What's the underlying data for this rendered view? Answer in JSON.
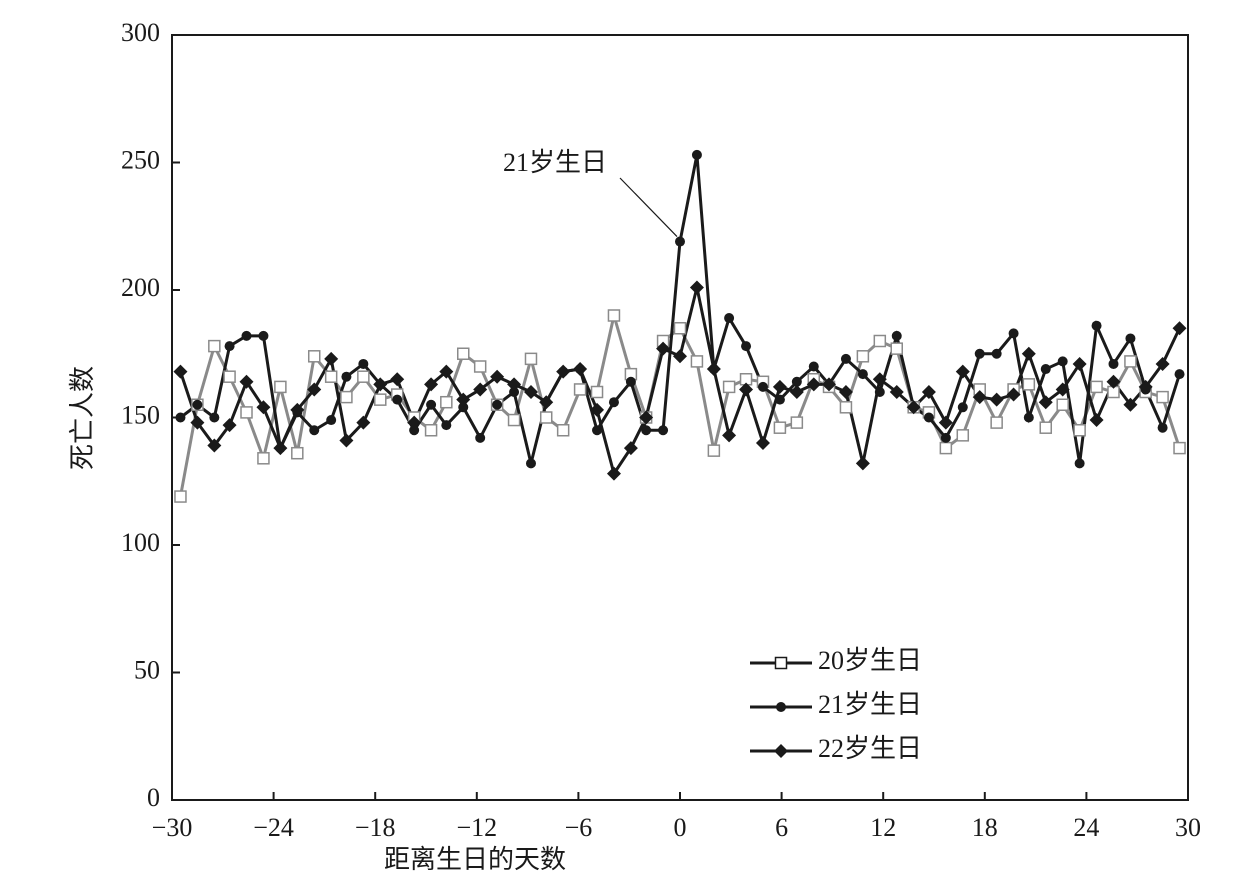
{
  "chart_data": {
    "type": "line",
    "xlabel": "距离生日的天数",
    "ylabel": "死亡人数",
    "annotation": "21岁生日",
    "xlim": [
      -30,
      30
    ],
    "ylim": [
      0,
      300
    ],
    "xticks": [
      {
        "value": -30,
        "label": "−30"
      },
      {
        "value": -24,
        "label": "−24"
      },
      {
        "value": -18,
        "label": "−18"
      },
      {
        "value": -12,
        "label": "−12"
      },
      {
        "value": -6,
        "label": "−6"
      },
      0,
      6,
      12,
      18,
      24,
      30
    ],
    "yticks": [
      0,
      50,
      100,
      150,
      200,
      250,
      300
    ],
    "legend": "lower right",
    "x": [
      -29.5,
      -28.5,
      -27.5,
      -26.6,
      -25.6,
      -24.6,
      -23.6,
      -22.6,
      -21.6,
      -20.6,
      -19.7,
      -18.7,
      -17.7,
      -16.7,
      -15.7,
      -14.7,
      -13.8,
      -12.8,
      -11.8,
      -10.8,
      -9.8,
      -8.8,
      -7.9,
      -6.9,
      -5.9,
      -4.9,
      -3.9,
      -2.9,
      -2.0,
      -1.0,
      0.0,
      1.0,
      2.0,
      2.9,
      3.9,
      4.9,
      5.9,
      6.9,
      7.9,
      8.8,
      9.8,
      10.8,
      11.8,
      12.8,
      13.8,
      14.7,
      15.7,
      16.7,
      17.7,
      18.7,
      19.7,
      20.6,
      21.6,
      22.6,
      23.6,
      24.6,
      25.6,
      26.6,
      27.5,
      28.5,
      29.5
    ],
    "series": [
      {
        "name": "20岁生日",
        "color": "#8a8a8a",
        "marker": "square",
        "values": [
          119,
          155,
          178,
          166,
          152,
          134,
          162,
          136,
          174,
          166,
          158,
          166,
          157,
          159,
          150,
          145,
          156,
          175,
          170,
          155,
          149,
          173,
          150,
          145,
          161,
          160,
          190,
          167,
          150,
          180,
          185,
          172,
          137,
          162,
          165,
          164,
          146,
          148,
          165,
          162,
          154,
          174,
          180,
          177,
          154,
          152,
          138,
          143,
          161,
          148,
          161,
          163,
          146,
          155,
          145,
          162,
          160,
          172,
          160,
          158,
          138
        ]
      },
      {
        "name": "21岁生日",
        "color": "#1a1a1a",
        "marker": "circle",
        "values": [
          150,
          155,
          150,
          178,
          182,
          182,
          138,
          152,
          145,
          149,
          166,
          171,
          163,
          157,
          145,
          155,
          147,
          154,
          142,
          155,
          160,
          132,
          156,
          168,
          169,
          145,
          156,
          164,
          145,
          145,
          219,
          253,
          169,
          189,
          178,
          162,
          157,
          164,
          170,
          163,
          173,
          167,
          160,
          182,
          154,
          150,
          142,
          154,
          175,
          175,
          183,
          150,
          169,
          172,
          132,
          186,
          171,
          181,
          161,
          146,
          167
        ]
      },
      {
        "name": "22岁生日",
        "color": "#1a1a1a",
        "marker": "diamond",
        "values": [
          168,
          148,
          139,
          147,
          164,
          154,
          138,
          153,
          161,
          173,
          141,
          148,
          163,
          165,
          148,
          163,
          168,
          157,
          161,
          166,
          163,
          160,
          156,
          168,
          169,
          153,
          128,
          138,
          150,
          177,
          174,
          201,
          169,
          143,
          161,
          140,
          162,
          160,
          163,
          163,
          160,
          132,
          165,
          160,
          154,
          160,
          148,
          168,
          158,
          157,
          159,
          175,
          156,
          161,
          171,
          149,
          164,
          155,
          162,
          171,
          185
        ]
      }
    ]
  }
}
